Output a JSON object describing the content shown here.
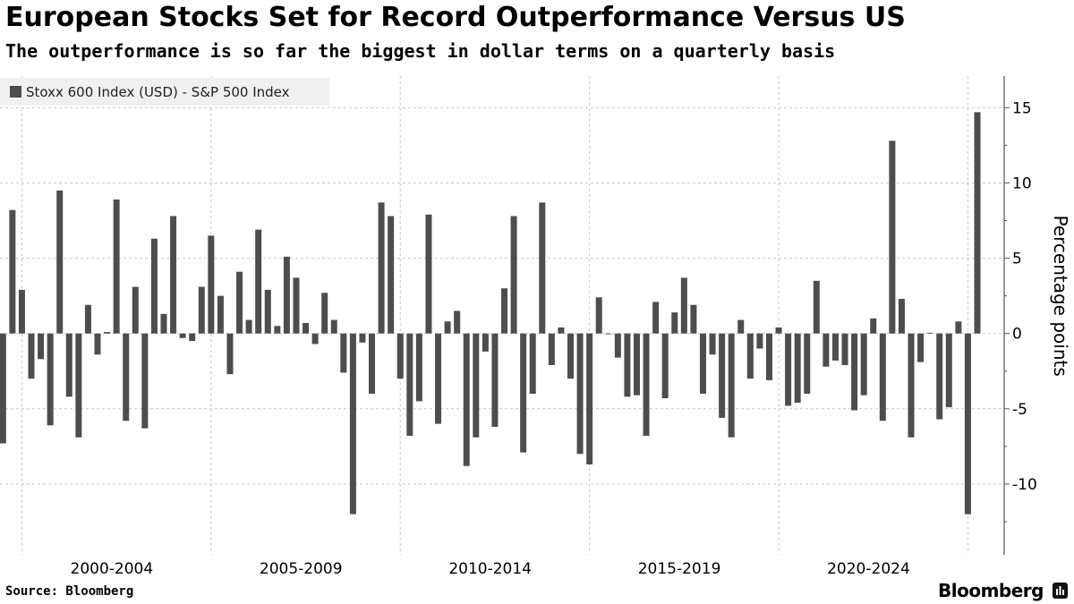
{
  "title": "European Stocks Set for Record Outperformance Versus US",
  "subtitle": "The outperformance is so far the biggest in dollar terms on a quarterly basis",
  "source": "Source: Bloomberg",
  "brand": "Bloomberg",
  "chart_data": {
    "type": "bar",
    "title": "European Stocks Set for Record Outperformance Versus US",
    "subtitle": "The outperformance is so far the biggest in dollar terms on a quarterly basis",
    "legend": [
      "Stoxx 600 Index (USD) - S&P 500 Index"
    ],
    "legend_position": "top-left",
    "ylabel": "Percentage points",
    "xlabel": "",
    "ylim": [
      -14.7,
      17.1
    ],
    "yticks": [
      -10,
      -5,
      0,
      5,
      10,
      15
    ],
    "x_group_labels": [
      "2000-2004",
      "2005-2009",
      "2010-2014",
      "2015-2019",
      "2020-2024"
    ],
    "first_quarter": "1999Q3",
    "grid": true,
    "color": "#4d4d4d",
    "values": [
      -7.3,
      8.2,
      2.9,
      -3.0,
      -1.7,
      -6.1,
      9.5,
      -4.2,
      -6.9,
      1.9,
      -1.4,
      0.1,
      8.9,
      -5.8,
      3.1,
      -6.3,
      6.3,
      1.3,
      7.8,
      -0.3,
      -0.5,
      3.1,
      6.5,
      2.5,
      -2.7,
      4.1,
      0.9,
      6.9,
      2.9,
      0.5,
      5.1,
      3.7,
      0.7,
      -0.7,
      2.7,
      0.9,
      -2.6,
      -12.0,
      -0.6,
      -4.0,
      8.7,
      7.8,
      -3.0,
      -6.8,
      -4.5,
      7.9,
      -6.0,
      0.8,
      1.5,
      -8.8,
      -6.9,
      -1.2,
      -6.2,
      3.0,
      7.8,
      -7.9,
      -4.0,
      8.7,
      -2.1,
      0.4,
      -3.0,
      -8.0,
      -8.7,
      2.4,
      -0.05,
      -1.6,
      -4.2,
      -4.1,
      -6.8,
      2.1,
      -4.3,
      1.4,
      3.7,
      1.9,
      -4.0,
      -1.4,
      -5.6,
      -6.9,
      0.9,
      -3.0,
      -1.0,
      -3.1,
      0.4,
      -4.8,
      -4.6,
      -4.0,
      3.5,
      -2.2,
      -1.8,
      -2.1,
      -5.1,
      -4.1,
      1.0,
      -5.8,
      12.8,
      2.3,
      -6.9,
      -1.9,
      0.05,
      -5.7,
      -4.9,
      0.8,
      -12.0,
      14.7
    ]
  }
}
